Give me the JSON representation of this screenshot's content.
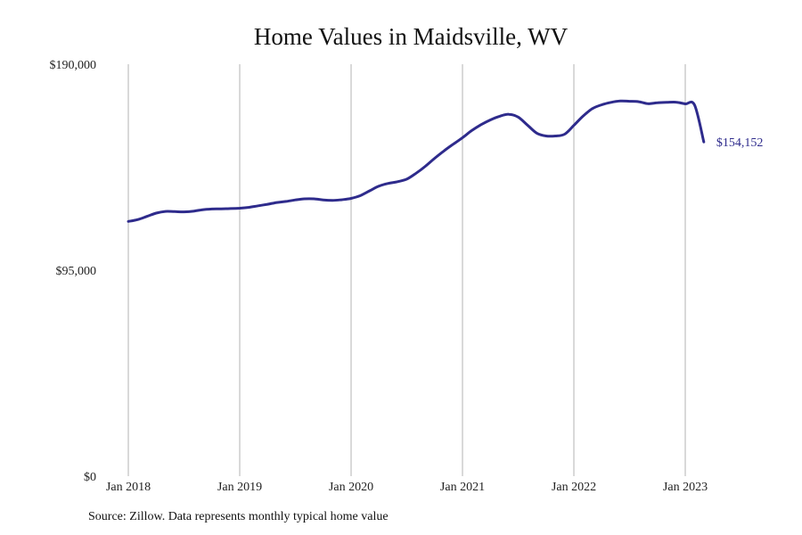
{
  "chart_data": {
    "type": "line",
    "title": "Home Values in Maidsville, WV",
    "source": "Source: Zillow. Data represents monthly typical home value",
    "xlabel": "",
    "ylabel": "",
    "ylim": [
      0,
      190000
    ],
    "yticks": [
      {
        "value": 0,
        "label": "$0"
      },
      {
        "value": 95000,
        "label": "$95,000"
      },
      {
        "value": 190000,
        "label": "$190,000"
      }
    ],
    "xlim": [
      "2018-01",
      "2023-03"
    ],
    "xticks": [
      {
        "value": "2018-01",
        "label": "Jan 2018"
      },
      {
        "value": "2019-01",
        "label": "Jan 2019"
      },
      {
        "value": "2020-01",
        "label": "Jan 2020"
      },
      {
        "value": "2021-01",
        "label": "Jan 2021"
      },
      {
        "value": "2022-01",
        "label": "Jan 2022"
      },
      {
        "value": "2023-01",
        "label": "Jan 2023"
      }
    ],
    "grid": "vertical",
    "line_color": "#2e2b8c",
    "end_label": "$154,152",
    "series": [
      {
        "x": [
          "2018-01",
          "2018-02",
          "2018-03",
          "2018-04",
          "2018-05",
          "2018-06",
          "2018-07",
          "2018-08",
          "2018-09",
          "2018-10",
          "2018-11",
          "2018-12",
          "2019-01",
          "2019-02",
          "2019-03",
          "2019-04",
          "2019-05",
          "2019-06",
          "2019-07",
          "2019-08",
          "2019-09",
          "2019-10",
          "2019-11",
          "2019-12",
          "2020-01",
          "2020-02",
          "2020-03",
          "2020-04",
          "2020-05",
          "2020-06",
          "2020-07",
          "2020-08",
          "2020-09",
          "2020-10",
          "2020-11",
          "2020-12",
          "2021-01",
          "2021-02",
          "2021-03",
          "2021-04",
          "2021-05",
          "2021-06",
          "2021-07",
          "2021-08",
          "2021-09",
          "2021-10",
          "2021-11",
          "2021-12",
          "2022-01",
          "2022-02",
          "2022-03",
          "2022-04",
          "2022-05",
          "2022-06",
          "2022-07",
          "2022-08",
          "2022-09",
          "2022-10",
          "2022-11",
          "2022-12",
          "2023-01",
          "2023-02",
          "2023-03"
        ],
        "values": [
          117500,
          118300,
          119800,
          121300,
          122100,
          122000,
          121900,
          122200,
          122900,
          123200,
          123300,
          123400,
          123600,
          124000,
          124700,
          125400,
          126200,
          126700,
          127400,
          127900,
          127900,
          127400,
          127200,
          127500,
          128100,
          129400,
          131600,
          133800,
          135000,
          135800,
          137000,
          139700,
          142900,
          146600,
          150000,
          153100,
          156100,
          159400,
          162100,
          164300,
          166000,
          166900,
          165600,
          161900,
          158200,
          156900,
          156900,
          157700,
          161800,
          166100,
          169500,
          171300,
          172400,
          173000,
          172900,
          172700,
          171800,
          172200,
          172400,
          172500,
          171700,
          171200,
          154152
        ]
      }
    ]
  }
}
